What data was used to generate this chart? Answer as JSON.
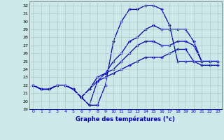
{
  "xlabel": "Graphe des températures (°c)",
  "xlim": [
    -0.5,
    23.5
  ],
  "ylim": [
    19,
    32.5
  ],
  "yticks": [
    19,
    20,
    21,
    22,
    23,
    24,
    25,
    26,
    27,
    28,
    29,
    30,
    31,
    32
  ],
  "xticks": [
    0,
    1,
    2,
    3,
    4,
    5,
    6,
    7,
    8,
    9,
    10,
    11,
    12,
    13,
    14,
    15,
    16,
    17,
    18,
    19,
    20,
    21,
    22,
    23
  ],
  "bg_color": "#cce8e8",
  "line_color": "#0000bb",
  "grid_color": "#aacccc",
  "curves": [
    [
      22,
      21.5,
      21.5,
      22,
      22,
      21.5,
      20.5,
      19.5,
      19.5,
      22,
      27.5,
      30,
      31.5,
      31.5,
      32,
      32,
      31.5,
      29.5,
      25,
      25,
      25,
      25,
      25,
      25
    ],
    [
      22,
      21.5,
      21.5,
      22,
      22,
      21.5,
      20.5,
      19.5,
      22.5,
      23.5,
      25,
      26,
      27.5,
      28,
      29,
      29.5,
      29,
      29,
      29,
      29,
      27.5,
      25,
      25,
      25
    ],
    [
      22,
      21.5,
      21.5,
      22,
      22,
      21.5,
      20.5,
      21.5,
      23,
      23.5,
      24,
      25,
      26,
      27,
      27.5,
      27.5,
      27,
      27,
      27.5,
      27.5,
      27,
      25,
      25,
      25
    ],
    [
      22,
      21.5,
      21.5,
      22,
      22,
      21.5,
      20.5,
      21.5,
      22.5,
      23,
      23.5,
      24,
      24.5,
      25,
      25.5,
      25.5,
      25.5,
      26,
      26.5,
      26.5,
      25,
      24.5,
      24.5,
      24.5
    ]
  ]
}
